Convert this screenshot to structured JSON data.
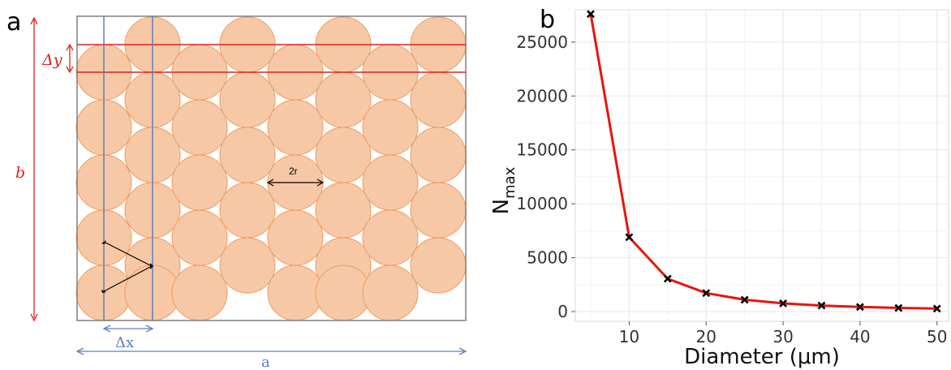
{
  "panel_a": {
    "letter": "a",
    "labels": {
      "delta_y": "Δy",
      "b": "b",
      "delta_x": "Δx",
      "a": "a",
      "two_r": "2r"
    },
    "colors": {
      "circle_fill": "#f7c8a6",
      "circle_stroke": "#ef9a5c",
      "red": "#e0201b",
      "blue": "#5b7fbf"
    }
  },
  "panel_b": {
    "letter": "b"
  },
  "chart_data": {
    "type": "line",
    "title": "",
    "xlabel": "Diameter (μm)",
    "ylabel": "N",
    "ylabel_subscript": "max",
    "xlim": [
      3,
      51.5
    ],
    "ylim": [
      -900,
      28000
    ],
    "x_ticks": [
      10,
      20,
      30,
      40,
      50
    ],
    "y_ticks": [
      0,
      5000,
      10000,
      15000,
      20000,
      25000
    ],
    "grid": true,
    "marker": "x",
    "line_color": "#e8140d",
    "series": [
      {
        "x": [
          5,
          10,
          15,
          20,
          25,
          30,
          35,
          40,
          45,
          50
        ],
        "y": [
          27600,
          6900,
          3050,
          1720,
          1100,
          760,
          560,
          430,
          340,
          280
        ]
      }
    ]
  }
}
